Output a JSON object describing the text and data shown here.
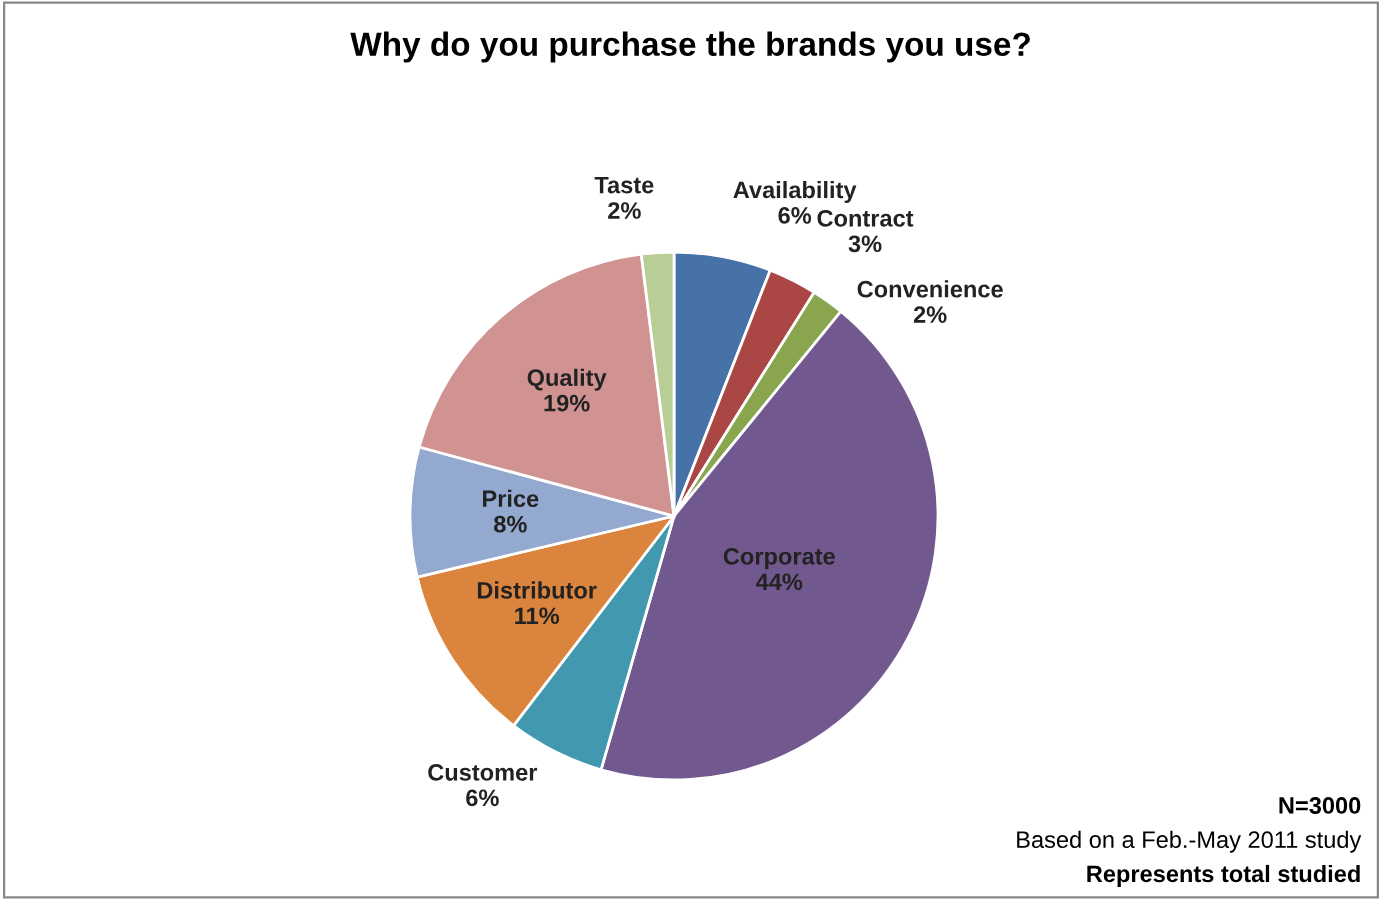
{
  "chart_data": {
    "type": "pie",
    "title": "Why do you purchase the brands you use?",
    "categories": [
      "Availability",
      "Contract",
      "Convenience",
      "Corporate",
      "Customer",
      "Distributor",
      "Price",
      "Quality",
      "Taste"
    ],
    "values": [
      6,
      3,
      2,
      44,
      6,
      11,
      8,
      19,
      2
    ],
    "colors": [
      "#4672a8",
      "#aa4643",
      "#89a54e",
      "#71588f",
      "#4198af",
      "#db843d",
      "#93a9cf",
      "#d19392",
      "#b9cd96"
    ],
    "value_labels": [
      "6%",
      "3%",
      "2%",
      "44%",
      "6%",
      "11%",
      "8%",
      "19%",
      "2%"
    ],
    "data_labels": true,
    "legend": false,
    "annotations": [
      "N=3000",
      "Based on a Feb.-May 2011 study",
      "Represents total studied"
    ]
  }
}
